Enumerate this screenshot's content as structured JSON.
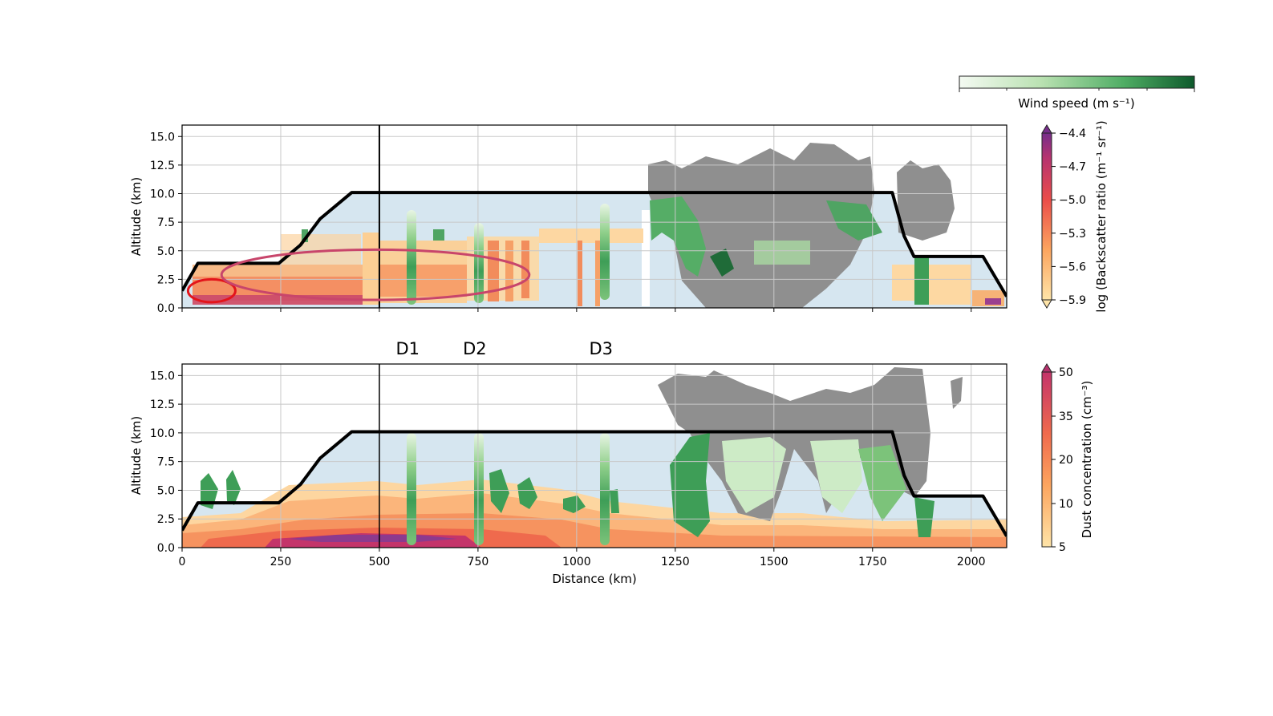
{
  "colors": {
    "background_fill": "#d6e6f0",
    "cloud_gray": "#8f8f8f",
    "flight_track": "#000000",
    "ellipse_red": "#e3151b",
    "ellipse_pink": "#c8456b",
    "grid": "#c8c8c8"
  },
  "chart_data": [
    {
      "type": "heatmap",
      "panel": "top",
      "xlabel": "",
      "ylabel": "Altitude (km)",
      "xlim": [
        0,
        2090
      ],
      "ylim": [
        0,
        16
      ],
      "xticks": [
        0,
        250,
        500,
        750,
        1000,
        1250,
        1500,
        1750,
        2000
      ],
      "yticks": [
        "0.0",
        "2.5",
        "5.0",
        "7.5",
        "10.0",
        "12.5",
        "15.0"
      ],
      "grid": true,
      "vertical_marker_km": 500,
      "flight_track": {
        "x": [
          0,
          40,
          245,
          300,
          350,
          430,
          1800,
          1830,
          1855,
          2030,
          2090
        ],
        "y": [
          1.5,
          3.9,
          3.9,
          5.5,
          7.8,
          10.1,
          10.1,
          6.3,
          4.5,
          4.5,
          1.0
        ]
      },
      "ellipses": [
        {
          "color": "red",
          "cx_km": 75,
          "cy_km": 1.5,
          "rx_km": 60,
          "ry_km": 1.0
        },
        {
          "color": "pink",
          "cx_km": 490,
          "cy_km": 2.9,
          "rx_km": 390,
          "ry_km": 2.2
        }
      ],
      "colorbar": {
        "label": "log (Backscatter ratio (m⁻¹ sr⁻¹)",
        "ticks": [
          "−4.4",
          "−4.7",
          "−5.0",
          "−5.3",
          "−5.6",
          "−5.9"
        ],
        "extend": "both"
      }
    },
    {
      "type": "heatmap",
      "panel": "bottom",
      "xlabel": "Distance (km)",
      "ylabel": "Altitude (km)",
      "xlim": [
        0,
        2090
      ],
      "ylim": [
        0,
        16
      ],
      "xticks": [
        0,
        250,
        500,
        750,
        1000,
        1250,
        1500,
        1750,
        2000
      ],
      "yticks": [
        "0.0",
        "2.5",
        "5.0",
        "7.5",
        "10.0",
        "12.5",
        "15.0"
      ],
      "grid": true,
      "vertical_marker_km": 500,
      "flight_track": {
        "x": [
          0,
          40,
          245,
          300,
          350,
          430,
          1800,
          1830,
          1855,
          2030,
          2090
        ],
        "y": [
          1.5,
          3.9,
          3.9,
          5.5,
          7.8,
          10.1,
          10.1,
          6.3,
          4.5,
          4.5,
          1.0
        ]
      },
      "colorbar": {
        "label": "Dust concentration (cm⁻³)",
        "ticks": [
          "50",
          "35",
          "20",
          "10",
          "5"
        ],
        "extend": "max"
      }
    },
    {
      "type": "colorbar",
      "label": "Wind speed (m s⁻¹)",
      "orientation": "horizontal",
      "position": "top-right"
    }
  ],
  "dropsondes": [
    {
      "label": "D1",
      "x_km": 580
    },
    {
      "label": "D2",
      "x_km": 750
    },
    {
      "label": "D3",
      "x_km": 1070
    }
  ]
}
